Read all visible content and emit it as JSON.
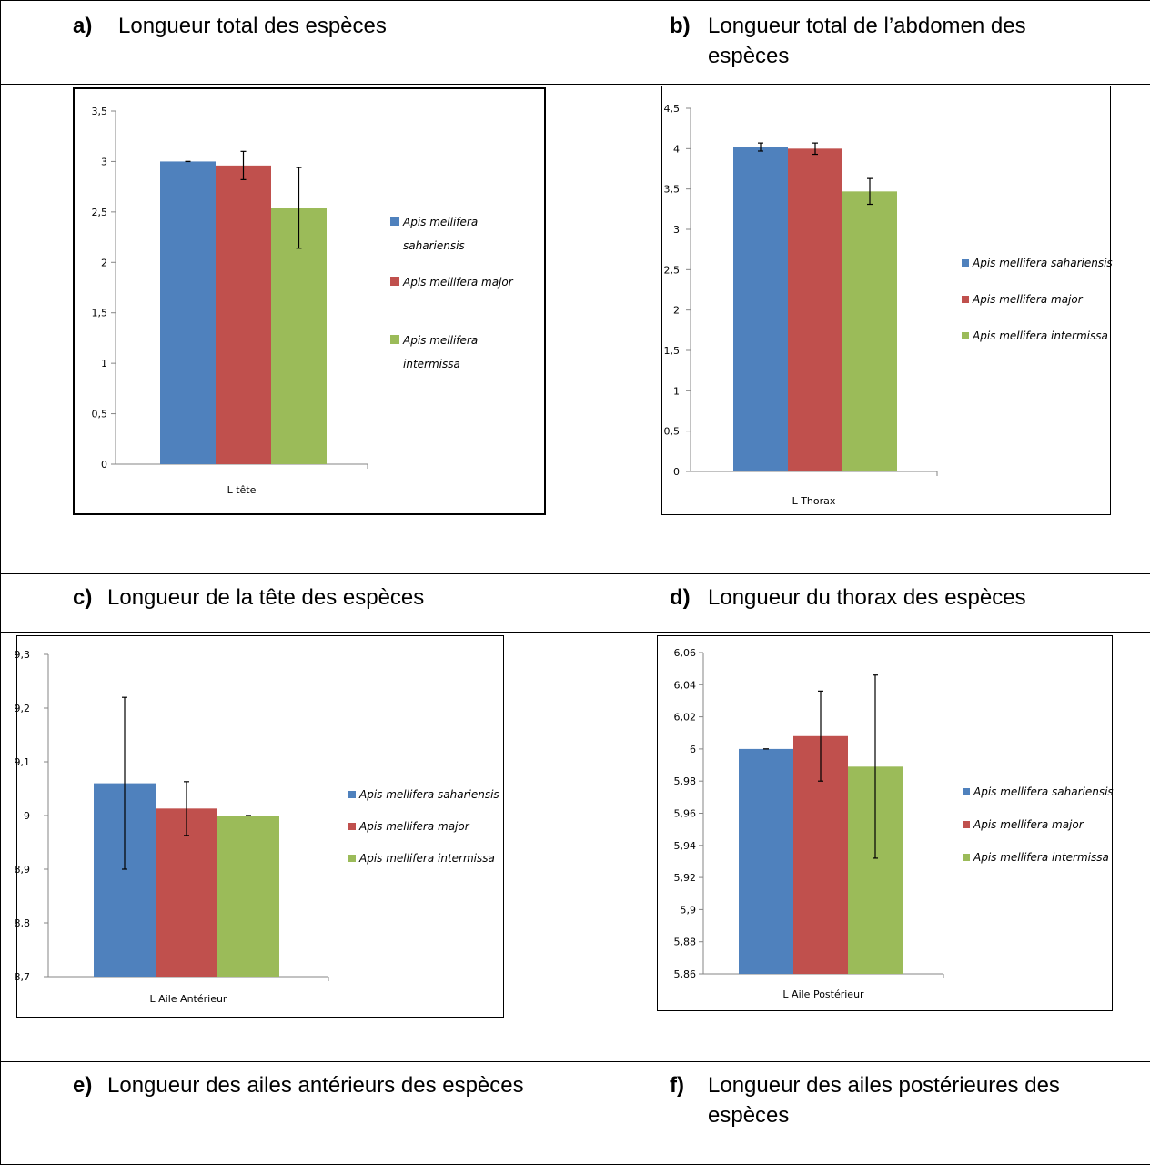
{
  "captions": [
    {
      "letter": "a)",
      "text": "Longueur total des espèces"
    },
    {
      "letter": "b)",
      "text": "Longueur total de l’abdomen des",
      "text2": "espèces"
    },
    {
      "letter": "c)",
      "text": "Longueur de la tête des espèces"
    },
    {
      "letter": "d)",
      "text": "Longueur du thorax des espèces"
    },
    {
      "letter": "e)",
      "text": "Longueur des ailes antérieurs des espèces"
    },
    {
      "letter": "f)",
      "text": "Longueur des ailes postérieures des",
      "text2": "espèces"
    }
  ],
  "colors": {
    "sahariensis": "#4f81bd",
    "major": "#c0504d",
    "intermissa": "#9bbb59"
  },
  "chart_data": [
    {
      "type": "bar",
      "categories": [
        "L tête"
      ],
      "ylim": [
        0,
        3.5
      ],
      "yticks": [
        "0",
        "0,5",
        "1",
        "1,5",
        "2",
        "2,5",
        "3",
        "3,5"
      ],
      "legend": [
        [
          "Apis mellifera",
          "sahariensis"
        ],
        [
          "Apis mellifera major"
        ],
        [
          "Apis mellifera",
          "intermissa"
        ]
      ],
      "series": [
        {
          "name": "Apis mellifera sahariensis",
          "values": [
            3.0
          ],
          "error": [
            0.0
          ]
        },
        {
          "name": "Apis mellifera major",
          "values": [
            2.96
          ],
          "error": [
            0.14
          ]
        },
        {
          "name": "Apis mellifera intermissa",
          "values": [
            2.54
          ],
          "error": [
            0.4
          ]
        }
      ]
    },
    {
      "type": "bar",
      "categories": [
        "L Thorax"
      ],
      "ylim": [
        0,
        4.5
      ],
      "yticks": [
        "0",
        "0,5",
        "1",
        "1,5",
        "2",
        "2,5",
        "3",
        "3,5",
        "4",
        "4,5"
      ],
      "legend": [
        [
          "Apis mellifera sahariensis"
        ],
        [
          "Apis mellifera major"
        ],
        [
          "Apis mellifera intermissa"
        ]
      ],
      "series": [
        {
          "name": "Apis mellifera sahariensis",
          "values": [
            4.02
          ],
          "error": [
            0.05
          ]
        },
        {
          "name": "Apis mellifera major",
          "values": [
            4.0
          ],
          "error": [
            0.07
          ]
        },
        {
          "name": "Apis mellifera intermissa",
          "values": [
            3.47
          ],
          "error": [
            0.16
          ]
        }
      ]
    },
    {
      "type": "bar",
      "categories": [
        "L Aile Antérieur"
      ],
      "ylim": [
        8.7,
        9.3
      ],
      "yticks": [
        "8,7",
        "8,8",
        "8,9",
        "9",
        "9,1",
        "9,2",
        "9,3"
      ],
      "legend": [
        [
          "Apis mellifera sahariensis"
        ],
        [
          "Apis mellifera major"
        ],
        [
          "Apis mellifera intermissa"
        ]
      ],
      "series": [
        {
          "name": "Apis mellifera sahariensis",
          "values": [
            9.06
          ],
          "error": [
            0.16
          ]
        },
        {
          "name": "Apis mellifera major",
          "values": [
            9.013
          ],
          "error": [
            0.05
          ]
        },
        {
          "name": "Apis mellifera intermissa",
          "values": [
            9.0
          ],
          "error": [
            0.0
          ]
        }
      ]
    },
    {
      "type": "bar",
      "categories": [
        "L Aile Postérieur"
      ],
      "ylim": [
        5.86,
        6.06
      ],
      "yticks": [
        "5,86",
        "5,88",
        "5,9",
        "5,92",
        "5,94",
        "5,96",
        "5,98",
        "6",
        "6,02",
        "6,04",
        "6,06"
      ],
      "legend": [
        [
          "Apis mellifera sahariensis"
        ],
        [
          "Apis mellifera major"
        ],
        [
          "Apis mellifera intermissa"
        ]
      ],
      "series": [
        {
          "name": "Apis mellifera sahariensis",
          "values": [
            6.0
          ],
          "error": [
            0.0
          ]
        },
        {
          "name": "Apis mellifera major",
          "values": [
            6.008
          ],
          "error": [
            0.028
          ]
        },
        {
          "name": "Apis mellifera intermissa",
          "values": [
            5.989
          ],
          "error": [
            0.057
          ]
        }
      ]
    }
  ]
}
